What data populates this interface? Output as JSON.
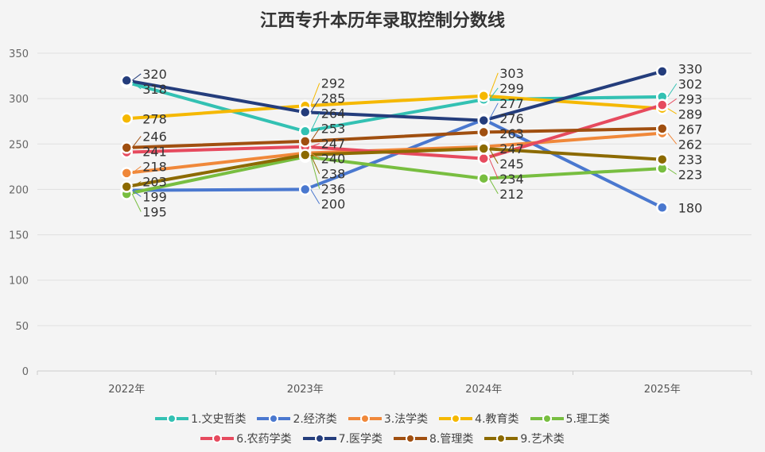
{
  "chart_data": {
    "type": "line",
    "title": "江西专升本历年录取控制分数线",
    "categories": [
      "2022年",
      "2023年",
      "2024年",
      "2025年"
    ],
    "ylim": [
      0,
      350
    ],
    "yticks": [
      0,
      50,
      100,
      150,
      200,
      250,
      300,
      350
    ],
    "grid": true,
    "legend_position": "bottom",
    "series": [
      {
        "name": "1.文史哲类",
        "color": "#33c1b3",
        "values": [
          318,
          264,
          299,
          302
        ]
      },
      {
        "name": "2.经济类",
        "color": "#4a78cf",
        "values": [
          199,
          200,
          277,
          180
        ]
      },
      {
        "name": "3.法学类",
        "color": "#f0883a",
        "values": [
          218,
          240,
          247,
          262
        ]
      },
      {
        "name": "4.教育类",
        "color": "#f5b800",
        "values": [
          278,
          292,
          303,
          289
        ]
      },
      {
        "name": "5.理工类",
        "color": "#78be40",
        "values": [
          195,
          236,
          212,
          223
        ]
      },
      {
        "name": "6.农药学类",
        "color": "#e64a5e",
        "values": [
          241,
          247,
          234,
          293
        ]
      },
      {
        "name": "7.医学类",
        "color": "#243d7c",
        "values": [
          320,
          285,
          276,
          330
        ]
      },
      {
        "name": "8.管理类",
        "color": "#a04f10",
        "values": [
          246,
          253,
          263,
          267
        ]
      },
      {
        "name": "9.艺术类",
        "color": "#8c6a00",
        "values": [
          203,
          238,
          245,
          233
        ]
      }
    ]
  }
}
